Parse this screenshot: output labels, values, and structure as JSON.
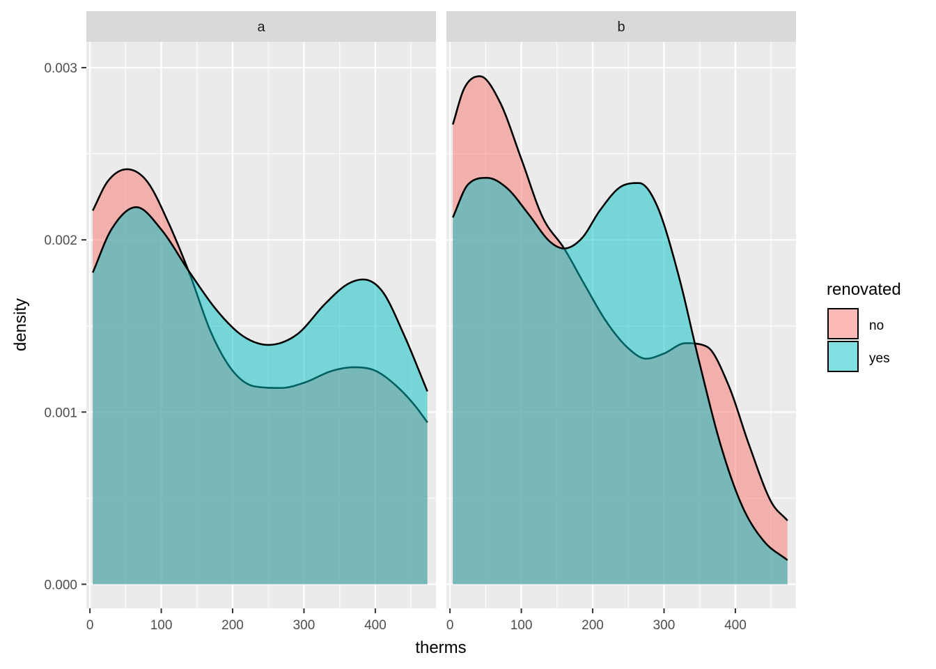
{
  "chart_data": {
    "type": "area",
    "subtype": "density",
    "facets": [
      "a",
      "b"
    ],
    "xlabel": "therms",
    "ylabel": "density",
    "xlim": [
      -5,
      485
    ],
    "ylim": [
      -0.00014,
      0.00315
    ],
    "x_ticks": [
      0,
      100,
      200,
      300,
      400
    ],
    "x_tick_labels": [
      "0",
      "100",
      "200",
      "300",
      "400"
    ],
    "y_ticks": [
      0,
      0.001,
      0.002,
      0.003
    ],
    "y_tick_labels": [
      "0.000",
      "0.001",
      "0.002",
      "0.003"
    ],
    "grid": true,
    "legend": {
      "title": "renovated",
      "position": "right",
      "entries": [
        {
          "label": "no",
          "color": "#F8766D"
        },
        {
          "label": "yes",
          "color": "#00BFC4"
        }
      ]
    },
    "fill_alpha": 0.5,
    "outline_color": "#000000",
    "panel_background": "#EBEBEB",
    "strip_background": "#D9D9D9",
    "series": [
      {
        "facet": "a",
        "name": "no",
        "color": "#F8766D",
        "x": [
          4,
          25,
          52,
          80,
          110,
          140,
          170,
          200,
          230,
          268,
          300,
          340,
          370,
          400,
          430,
          455,
          473
        ],
        "values": [
          0.00217,
          0.00234,
          0.00241,
          0.00234,
          0.0021,
          0.0018,
          0.00146,
          0.00124,
          0.00115,
          0.00114,
          0.00117,
          0.00124,
          0.00126,
          0.00124,
          0.00115,
          0.00104,
          0.00094
        ]
      },
      {
        "facet": "a",
        "name": "yes",
        "color": "#00BFC4",
        "x": [
          4,
          30,
          65,
          100,
          140,
          180,
          215,
          250,
          290,
          330,
          360,
          383,
          410,
          440,
          473
        ],
        "values": [
          0.00181,
          0.00206,
          0.00219,
          0.00206,
          0.00181,
          0.00158,
          0.00144,
          0.00139,
          0.00145,
          0.00163,
          0.00174,
          0.00177,
          0.0017,
          0.00145,
          0.00112
        ]
      },
      {
        "facet": "b",
        "name": "no",
        "color": "#F8766D",
        "x": [
          4,
          20,
          42,
          70,
          100,
          130,
          160,
          190,
          220,
          250,
          275,
          300,
          330,
          360,
          390,
          420,
          450,
          473
        ],
        "values": [
          0.00267,
          0.00288,
          0.00295,
          0.0028,
          0.00247,
          0.00213,
          0.00195,
          0.00173,
          0.00152,
          0.00137,
          0.00131,
          0.00134,
          0.0014,
          0.00138,
          0.00116,
          0.0008,
          0.00048,
          0.00037
        ]
      },
      {
        "facet": "b",
        "name": "yes",
        "color": "#00BFC4",
        "x": [
          4,
          25,
          52,
          80,
          110,
          140,
          160,
          185,
          210,
          240,
          265,
          290,
          320,
          350,
          380,
          410,
          440,
          473
        ],
        "values": [
          0.00213,
          0.00232,
          0.00236,
          0.0023,
          0.00215,
          0.00199,
          0.00195,
          0.00201,
          0.00217,
          0.00231,
          0.00233,
          0.0022,
          0.0018,
          0.00128,
          0.0008,
          0.00045,
          0.00025,
          0.00014
        ]
      }
    ]
  }
}
